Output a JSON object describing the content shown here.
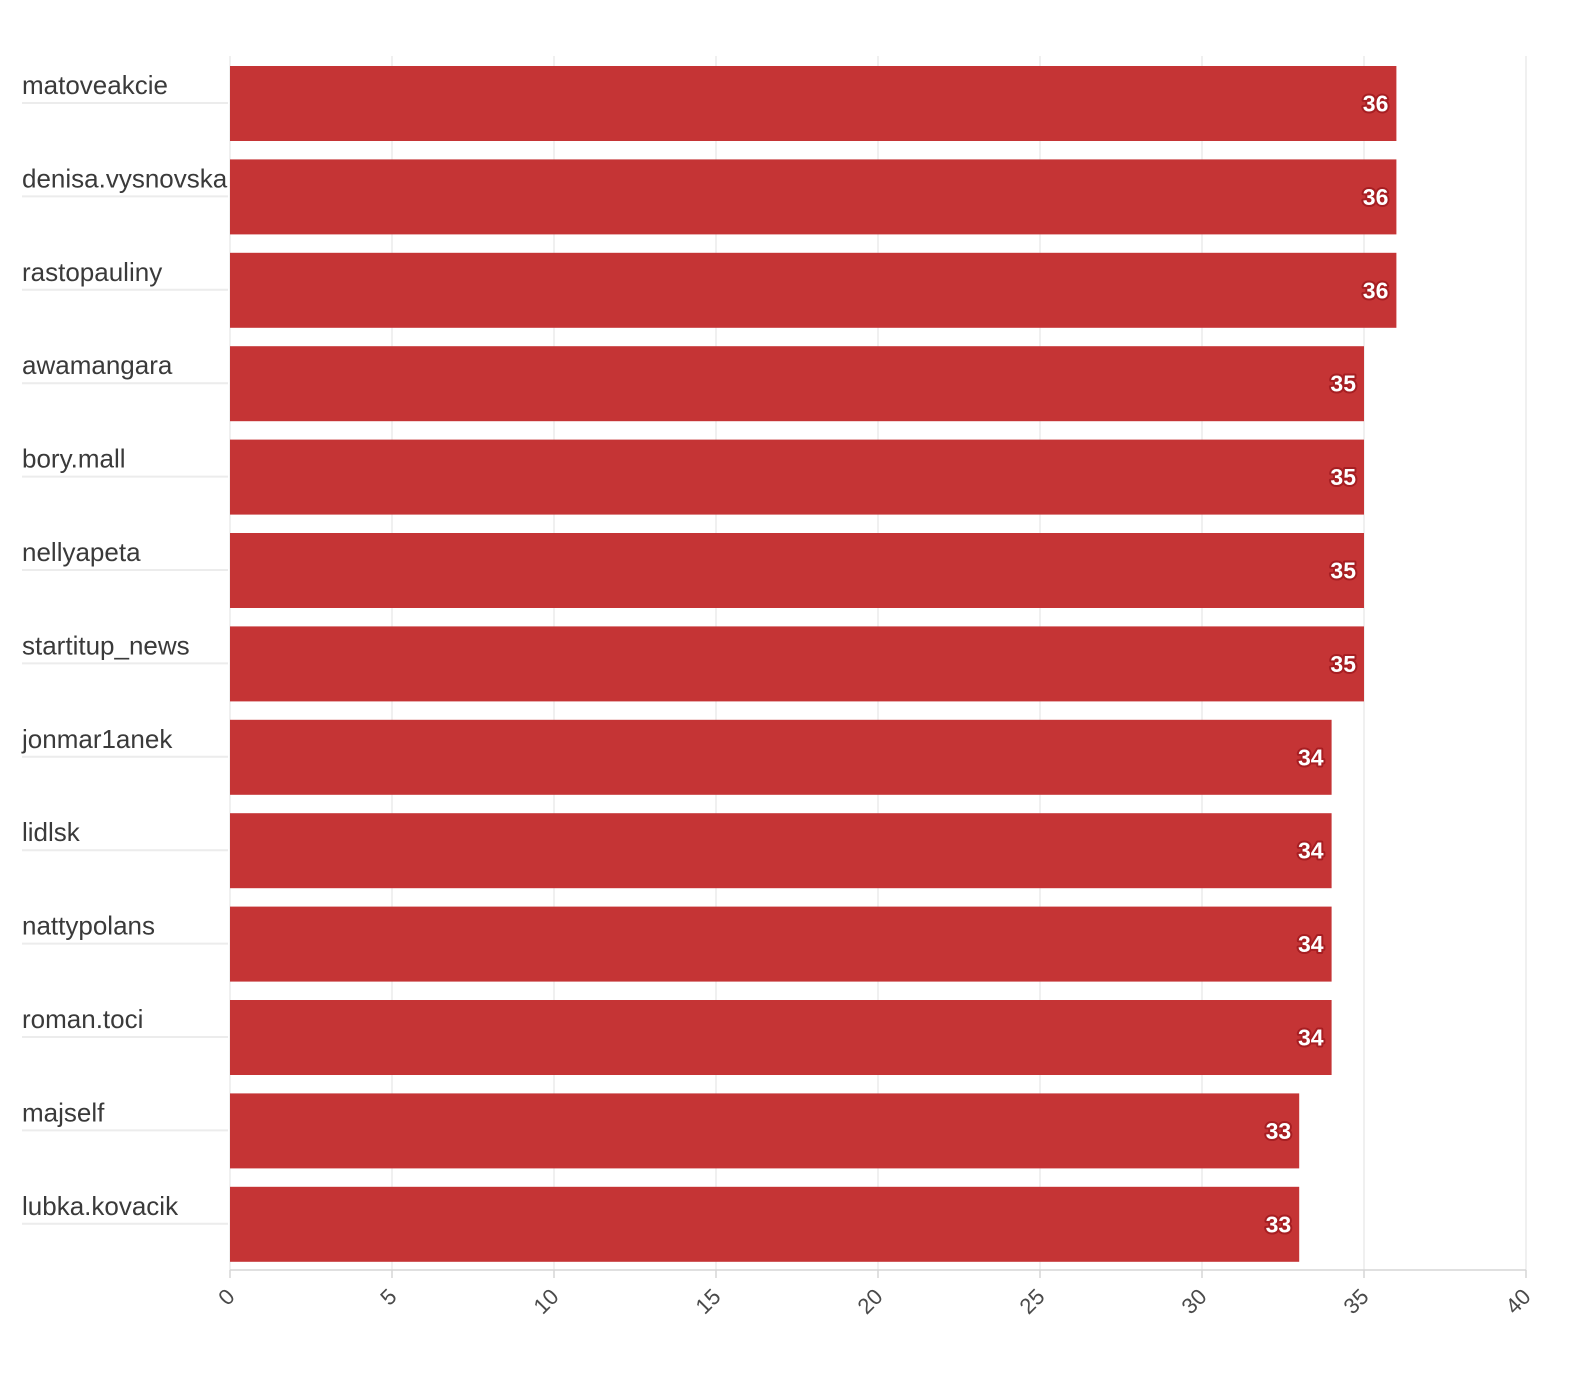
{
  "chart_data": {
    "type": "bar",
    "orientation": "horizontal",
    "title": "",
    "xlabel": "",
    "ylabel": "",
    "categories": [
      "matoveakcie",
      "denisa.vysnovska",
      "rastopauliny",
      "awamangara",
      "bory.mall",
      "nellyapeta",
      "startitup_news",
      "jonmar1anek",
      "lidlsk",
      "nattypolans",
      "roman.toci",
      "majself",
      "lubka.kovacik"
    ],
    "values": [
      36,
      36,
      36,
      35,
      35,
      35,
      35,
      34,
      34,
      34,
      34,
      33,
      33
    ],
    "xlim": [
      0,
      40
    ],
    "ticks": [
      "0",
      "5",
      "10",
      "15",
      "20",
      "25",
      "30",
      "35",
      "40"
    ],
    "tick_values": [
      0,
      5,
      10,
      15,
      20,
      25,
      30,
      35,
      40
    ],
    "grid": true,
    "legend": "none",
    "colors": {
      "bar": "#c53435",
      "label_outline": "#a61e22",
      "grid": "#ececec",
      "axis": "#d6d6d6"
    }
  }
}
